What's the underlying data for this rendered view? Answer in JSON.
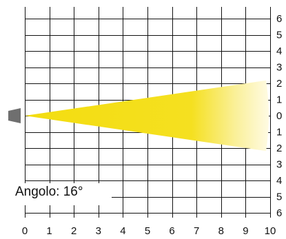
{
  "x_ticks": [
    "0",
    "1",
    "2",
    "3",
    "4",
    "5",
    "6",
    "7",
    "8",
    "9",
    "10"
  ],
  "y_ticks": [
    "6",
    "5",
    "4",
    "3",
    "2",
    "1",
    "0",
    "1",
    "2",
    "3",
    "4",
    "5",
    "6"
  ],
  "beam": {
    "angle_text": "Angolo: 16°",
    "angle_deg": 16,
    "color": "#f3dd10",
    "fade_color": "#fffbe0"
  },
  "grid_color": "#111111",
  "source_color": "#6f6f6f"
}
